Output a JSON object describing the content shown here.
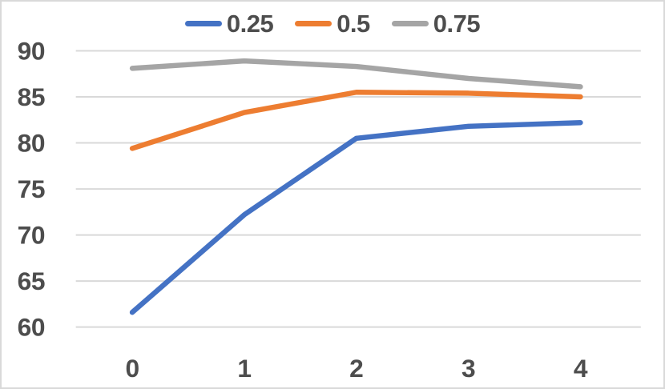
{
  "chart_data": {
    "type": "line",
    "title": "",
    "xlabel": "",
    "ylabel": "",
    "x": [
      0,
      1,
      2,
      3,
      4
    ],
    "x_tick_labels": [
      "0",
      "1",
      "2",
      "3",
      "4"
    ],
    "y_ticks": [
      60,
      65,
      70,
      75,
      80,
      85,
      90
    ],
    "ylim": [
      60,
      90
    ],
    "grid": "horizontal-only",
    "legend_position": "top-center",
    "series": [
      {
        "name": "0.25",
        "color": "#4472C4",
        "values": [
          61.6,
          72.2,
          80.5,
          81.8,
          82.2
        ]
      },
      {
        "name": "0.5",
        "color": "#ED7D31",
        "values": [
          79.4,
          83.3,
          85.5,
          85.4,
          85.0
        ]
      },
      {
        "name": "0.75",
        "color": "#A5A5A5",
        "values": [
          88.1,
          88.9,
          88.3,
          87.0,
          86.1
        ]
      }
    ]
  },
  "colors": {
    "axis_text": "#4d4d4d",
    "gridline": "#d9d9d9",
    "border": "#d9d9d9",
    "background": "#ffffff"
  }
}
